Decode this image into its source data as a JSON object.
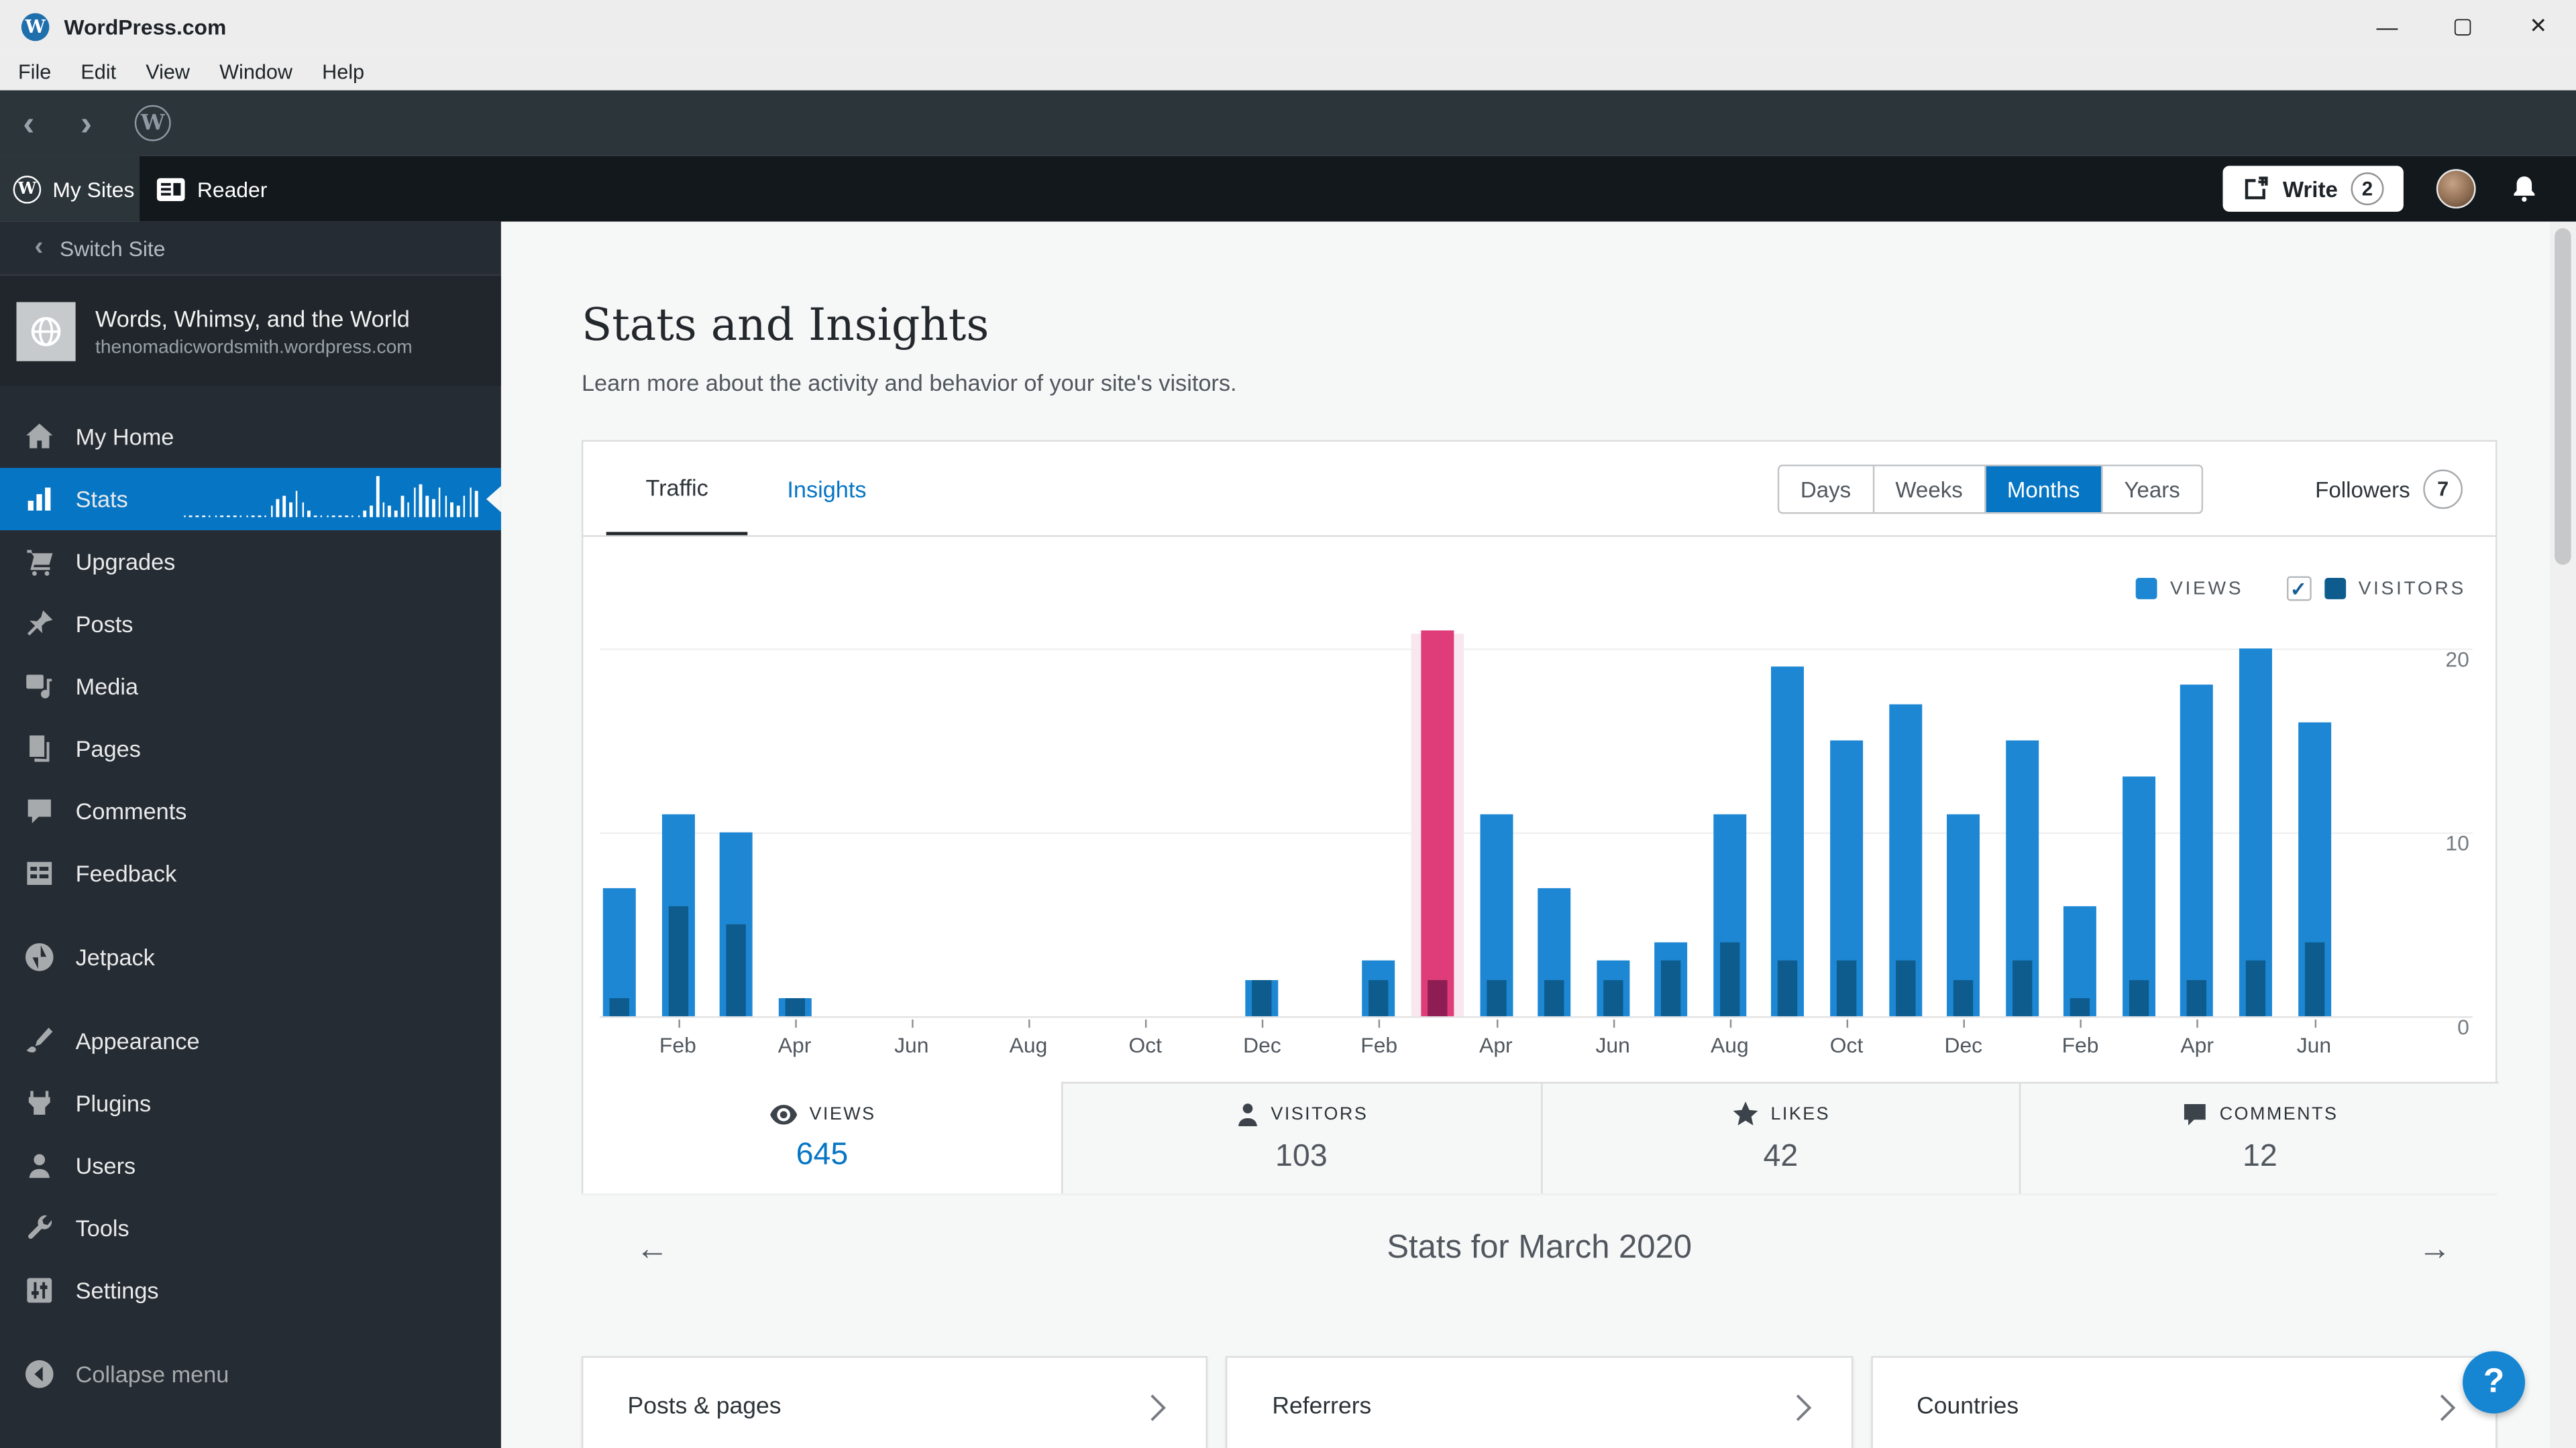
{
  "window": {
    "title": "WordPress.com",
    "menu": [
      "File",
      "Edit",
      "View",
      "Window",
      "Help"
    ],
    "controls": {
      "minimize": "—",
      "maximize": "▢",
      "close": "✕"
    }
  },
  "masthead": {
    "my_sites_label": "My Sites",
    "reader_label": "Reader",
    "write_label": "Write",
    "write_badge": "2"
  },
  "sidebar": {
    "switch_site_label": "Switch Site",
    "site": {
      "name": "Words, Whimsy, and the World",
      "domain": "thenomadicwordsmith.wordpress.com"
    },
    "items": [
      {
        "label": "My Home",
        "icon": "home-icon",
        "selected": false,
        "gap": false
      },
      {
        "label": "Stats",
        "icon": "stats-icon",
        "selected": true,
        "gap": false
      },
      {
        "label": "Upgrades",
        "icon": "cart-icon",
        "selected": false,
        "gap": false
      },
      {
        "label": "Posts",
        "icon": "pushpin-icon",
        "selected": false,
        "gap": false
      },
      {
        "label": "Media",
        "icon": "media-icon",
        "selected": false,
        "gap": false
      },
      {
        "label": "Pages",
        "icon": "pages-icon",
        "selected": false,
        "gap": false
      },
      {
        "label": "Comments",
        "icon": "comment-icon",
        "selected": false,
        "gap": false
      },
      {
        "label": "Feedback",
        "icon": "feedback-icon",
        "selected": false,
        "gap": false
      },
      {
        "label": "Jetpack",
        "icon": "jetpack-icon",
        "selected": false,
        "gap": true
      },
      {
        "label": "Appearance",
        "icon": "brush-icon",
        "selected": false,
        "gap": true
      },
      {
        "label": "Plugins",
        "icon": "plug-icon",
        "selected": false,
        "gap": false
      },
      {
        "label": "Users",
        "icon": "user-icon",
        "selected": false,
        "gap": false
      },
      {
        "label": "Tools",
        "icon": "wrench-icon",
        "selected": false,
        "gap": false
      },
      {
        "label": "Settings",
        "icon": "sliders-icon",
        "selected": false,
        "gap": false
      }
    ],
    "collapse_label": "Collapse menu",
    "stats_sparkline": [
      0,
      0,
      0,
      0,
      0,
      0,
      0,
      0,
      0,
      0,
      0,
      0,
      0,
      0,
      2,
      4,
      5,
      3,
      6,
      3,
      1,
      0,
      0,
      0,
      0,
      0,
      0,
      0,
      0,
      1,
      2,
      10,
      3,
      2,
      1,
      5,
      3,
      7,
      8,
      5,
      4,
      7,
      5,
      3,
      2,
      5,
      7,
      6
    ]
  },
  "main": {
    "title": "Stats and Insights",
    "subtitle": "Learn more about the activity and behavior of your site's visitors.",
    "tabs": {
      "traffic": "Traffic",
      "insights": "Insights"
    },
    "periods": [
      "Days",
      "Weeks",
      "Months",
      "Years"
    ],
    "selected_period": "Months",
    "followers_label": "Followers",
    "followers_count": "7",
    "summary": [
      {
        "label": "VIEWS",
        "value": "645",
        "icon": "eye-icon",
        "selected": true
      },
      {
        "label": "VISITORS",
        "value": "103",
        "icon": "person-icon",
        "selected": false
      },
      {
        "label": "LIKES",
        "value": "42",
        "icon": "star-icon",
        "selected": false
      },
      {
        "label": "COMMENTS",
        "value": "12",
        "icon": "bubble-icon",
        "selected": false
      }
    ],
    "period_nav_title": "Stats for March 2020",
    "modules": [
      "Posts & pages",
      "Referrers",
      "Countries"
    ],
    "help_label": "?"
  },
  "colors": {
    "accent": "#0675c4",
    "views_bar": "#1e87d3",
    "visitors_bar": "#0d5c8d",
    "selected_views_bar": "#de3d79",
    "selected_visitors_bar": "#8e1d53",
    "selected_band": "#f8e7ee",
    "sidebar_selected": "#0675c4"
  },
  "chart_data": {
    "type": "bar",
    "title": "Monthly views and visitors",
    "categories": [
      "Jan 2019",
      "Feb 2019",
      "Mar 2019",
      "Apr 2019",
      "May 2019",
      "Jun 2019",
      "Jul 2019",
      "Aug 2019",
      "Sep 2019",
      "Oct 2019",
      "Nov 2019",
      "Dec 2019",
      "Jan 2020",
      "Feb 2020",
      "Mar 2020",
      "Apr 2020",
      "May 2020",
      "Jun 2020",
      "Jul 2020",
      "Aug 2020",
      "Sep 2020",
      "Oct 2020",
      "Nov 2020",
      "Dec 2020",
      "Jan 2021",
      "Feb 2021",
      "Mar 2021",
      "Apr 2021",
      "May 2021",
      "Jun 2021"
    ],
    "series": [
      {
        "name": "VIEWS",
        "values": [
          7,
          11,
          10,
          1,
          0,
          0,
          0,
          0,
          0,
          0,
          0,
          2,
          0,
          3,
          21,
          11,
          7,
          3,
          4,
          11,
          19,
          15,
          17,
          11,
          15,
          6,
          13,
          18,
          20,
          16
        ]
      },
      {
        "name": "VISITORS",
        "values": [
          1,
          6,
          5,
          1,
          0,
          0,
          0,
          0,
          0,
          0,
          0,
          2,
          0,
          2,
          2,
          2,
          2,
          2,
          3,
          4,
          3,
          3,
          3,
          2,
          3,
          1,
          2,
          2,
          3,
          4
        ]
      }
    ],
    "selected_index": 14,
    "selected_category": "Mar 2020",
    "xlabel": "",
    "ylabel": "",
    "ylim": [
      0,
      21.5
    ],
    "yticks": [
      0,
      10,
      20
    ],
    "grid": true,
    "legend_position": "top-right",
    "tick_indices": [
      1,
      3,
      5,
      7,
      9,
      11,
      13,
      15,
      17,
      19,
      21,
      23,
      25,
      27,
      29
    ],
    "tick_labels": [
      "Feb",
      "Apr",
      "Jun",
      "Aug",
      "Oct",
      "Dec",
      "Feb",
      "Apr",
      "Jun",
      "Aug",
      "Oct",
      "Dec",
      "Feb",
      "Apr",
      "Jun"
    ]
  }
}
